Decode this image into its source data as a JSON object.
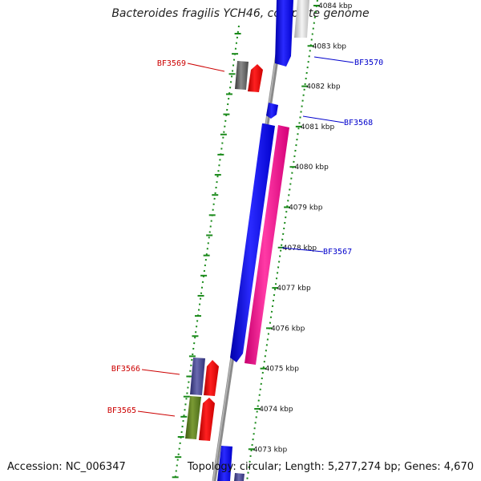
{
  "title": "Bacteroides fragilis YCH46, complete genome",
  "footer": {
    "accession": "Accession: NC_006347",
    "summary": "Topology: circular; Length: 5,277,274 bp; Genes: 4,670"
  },
  "colors": {
    "backbone": "#8a8a8a",
    "ticks": "#1a8a1a",
    "label_red": "#cc0000",
    "label_blue": "#0000cc"
  },
  "kbp_labels": [
    "4084 kbp",
    "4083 kbp",
    "4082 kbp",
    "4081 kbp",
    "4080 kbp",
    "4079 kbp",
    "4078 kbp",
    "4077 kbp",
    "4076 kbp",
    "4075 kbp",
    "4074 kbp",
    "4073 kbp"
  ],
  "gene_labels": [
    {
      "id": "BF3569",
      "side": "left",
      "color": "red"
    },
    {
      "id": "BF3570",
      "side": "right",
      "color": "blue"
    },
    {
      "id": "BF3568",
      "side": "right",
      "color": "blue"
    },
    {
      "id": "BF3567",
      "side": "right",
      "color": "blue"
    },
    {
      "id": "BF3566",
      "side": "left",
      "color": "red"
    },
    {
      "id": "BF3565",
      "side": "left",
      "color": "red"
    }
  ]
}
